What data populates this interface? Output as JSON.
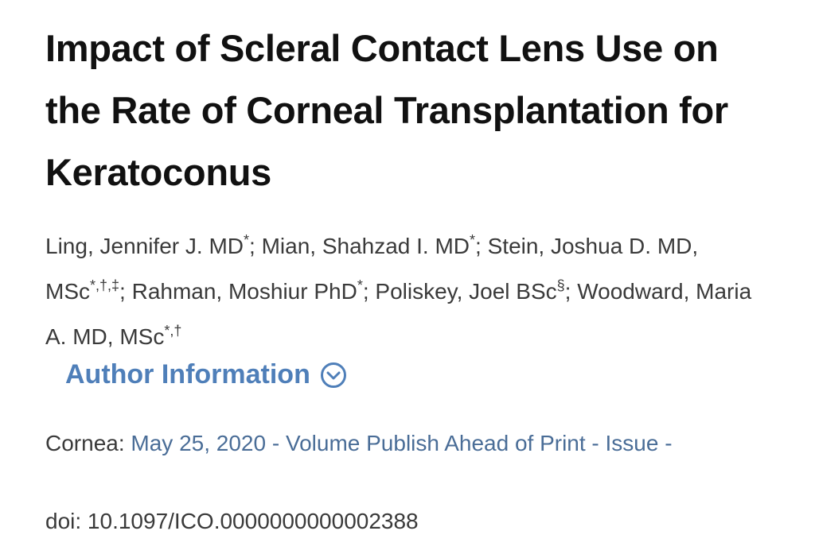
{
  "article": {
    "title": "Impact of Scleral Contact Lens Use on the Rate of Corneal Transplantation for Keratoconus",
    "author_separator": "; ",
    "authors": [
      {
        "name": "Ling, Jennifer J. MD",
        "affiliations": "*"
      },
      {
        "name": "Mian, Shahzad I. MD",
        "affiliations": "*"
      },
      {
        "name": "Stein, Joshua D. MD, MSc",
        "affiliations": "*,†,‡"
      },
      {
        "name": "Rahman, Moshiur PhD",
        "affiliations": "*"
      },
      {
        "name": "Poliskey, Joel BSc",
        "affiliations": "§"
      },
      {
        "name": "Woodward, Maria A. MD, MSc",
        "affiliations": "*,†"
      }
    ],
    "author_information_link": "Author Information",
    "journal": "Cornea:",
    "publication": "May 25, 2020 - Volume Publish Ahead of Print - Issue -",
    "doi": "doi: 10.1097/ICO.0000000000002388"
  }
}
